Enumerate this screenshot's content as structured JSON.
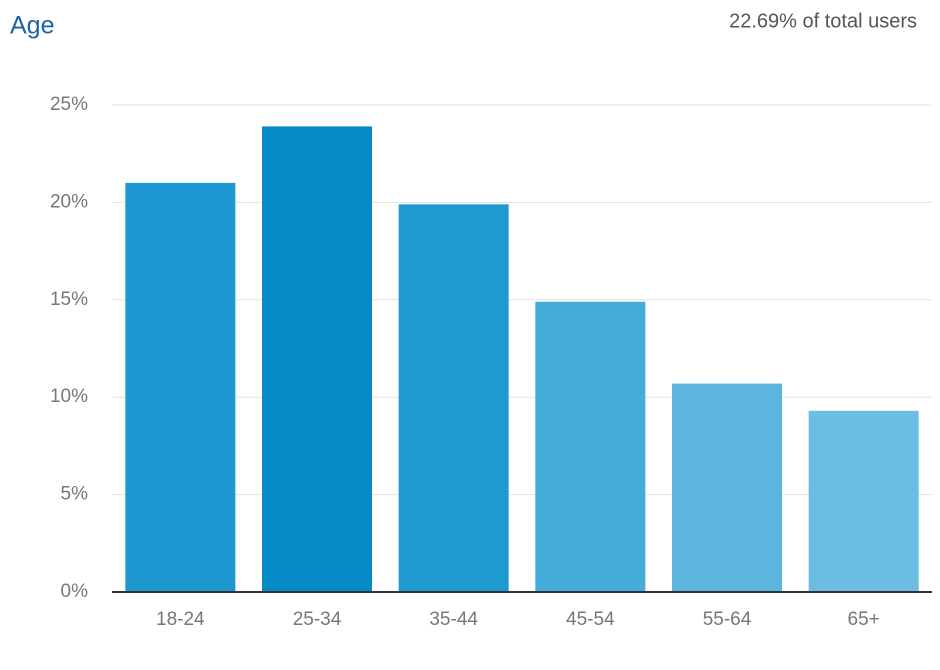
{
  "chart_data": {
    "type": "bar",
    "title": "Age",
    "subtitle": "22.69% of total users",
    "categories": [
      "18-24",
      "25-34",
      "35-44",
      "45-54",
      "55-64",
      "65+"
    ],
    "values": [
      21.0,
      23.9,
      19.9,
      14.9,
      10.7,
      9.3
    ],
    "colors": [
      "#1c97d0",
      "#068ac6",
      "#1f9ad1",
      "#45abdb",
      "#5cb5de",
      "#6cbde2"
    ],
    "ylim": [
      0,
      25
    ],
    "yticks": [
      {
        "value": 0,
        "label": "0%"
      },
      {
        "value": 5,
        "label": "5%"
      },
      {
        "value": 10,
        "label": "10%"
      },
      {
        "value": 15,
        "label": "15%"
      },
      {
        "value": 20,
        "label": "20%"
      },
      {
        "value": 25,
        "label": "25%"
      }
    ],
    "grid": true
  }
}
